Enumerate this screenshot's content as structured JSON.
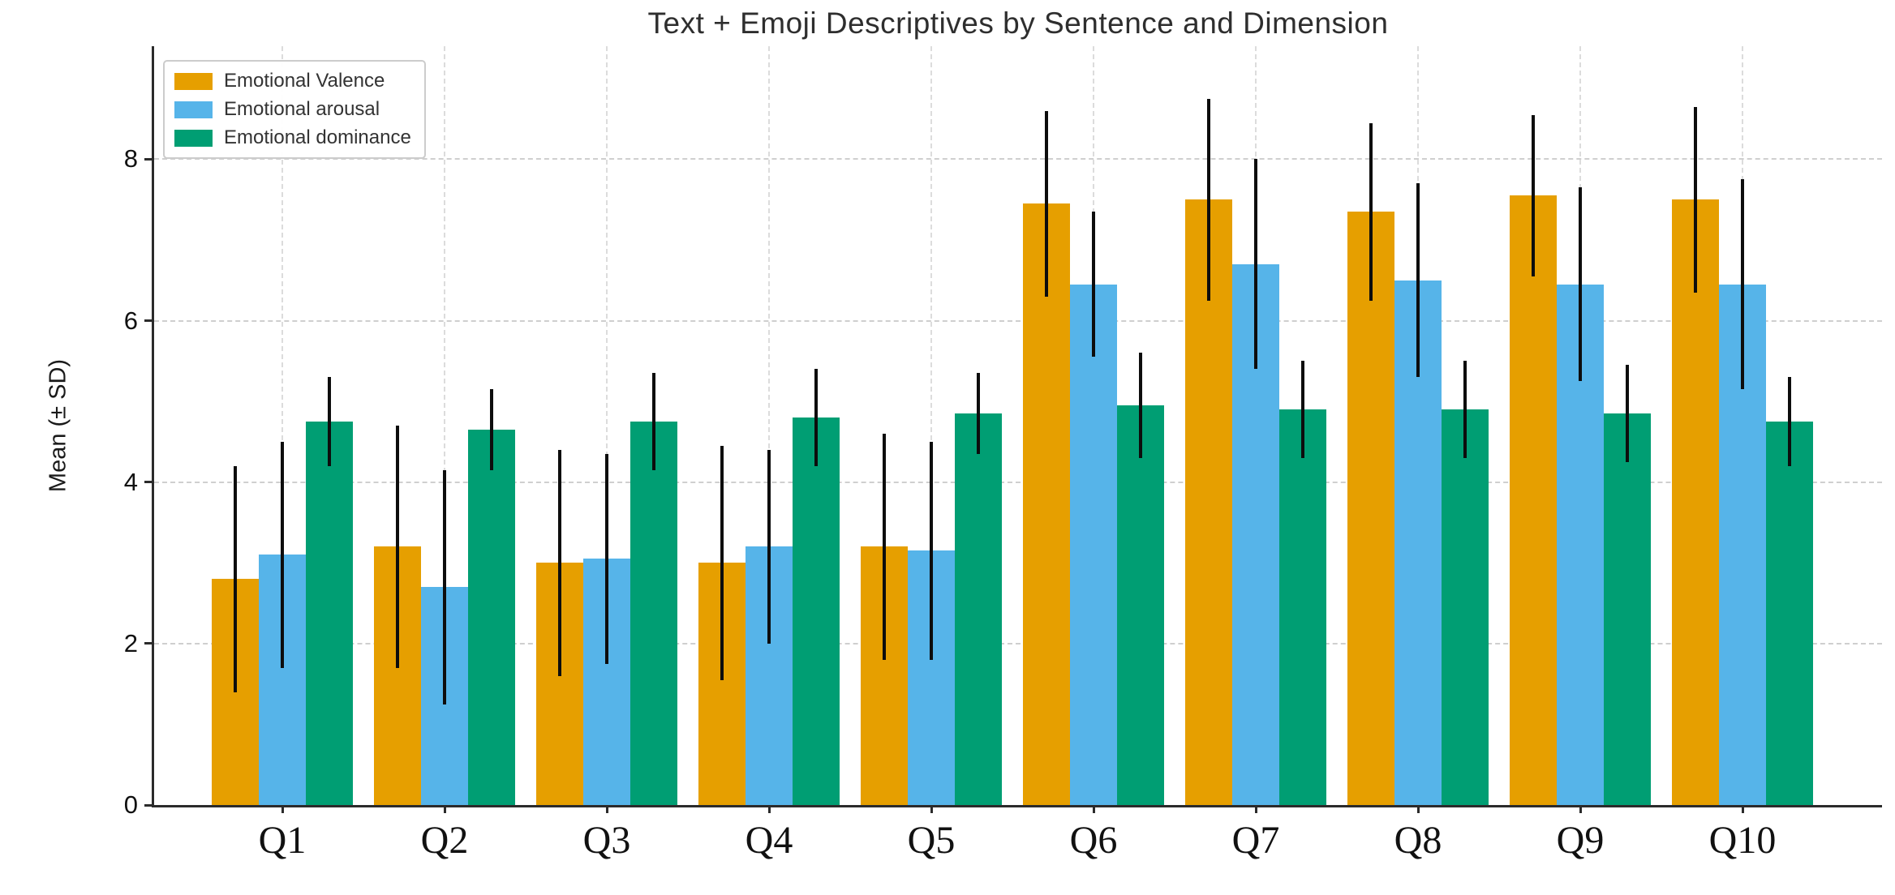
{
  "title": "Text + Emoji Descriptives by Sentence and Dimension",
  "chart_data": {
    "type": "bar",
    "title": "Text + Emoji Descriptives by Sentence and Dimension",
    "xlabel": "",
    "ylabel": "Mean (± SD)",
    "categories": [
      "Q1",
      "Q2",
      "Q3",
      "Q4",
      "Q5",
      "Q6",
      "Q7",
      "Q8",
      "Q9",
      "Q10"
    ],
    "yticks": [
      0,
      2,
      4,
      6,
      8
    ],
    "ylim": [
      0,
      9.4
    ],
    "grid": "dashed horizontal lines at y ticks and dashed vertical lines at each category center",
    "legend_position": "upper left",
    "error_bar_style": "black vertical line, ± SD, no caps",
    "series": [
      {
        "name": "Emotional Valence",
        "color": "#E69F00",
        "values": [
          2.8,
          3.2,
          3.0,
          3.0,
          3.2,
          7.45,
          7.5,
          7.35,
          7.55,
          7.5
        ],
        "sd": [
          1.4,
          1.5,
          1.4,
          1.45,
          1.4,
          1.15,
          1.25,
          1.1,
          1.0,
          1.15
        ]
      },
      {
        "name": "Emotional arousal",
        "color": "#56B4E9",
        "values": [
          3.1,
          2.7,
          3.05,
          3.2,
          3.15,
          6.45,
          6.7,
          6.5,
          6.45,
          6.45
        ],
        "sd": [
          1.4,
          1.45,
          1.3,
          1.2,
          1.35,
          0.9,
          1.3,
          1.2,
          1.2,
          1.3
        ]
      },
      {
        "name": "Emotional dominance",
        "color": "#009E73",
        "values": [
          4.75,
          4.65,
          4.75,
          4.8,
          4.85,
          4.95,
          4.9,
          4.9,
          4.85,
          4.75
        ],
        "sd": [
          0.55,
          0.5,
          0.6,
          0.6,
          0.5,
          0.65,
          0.6,
          0.6,
          0.6,
          0.55
        ]
      }
    ]
  }
}
